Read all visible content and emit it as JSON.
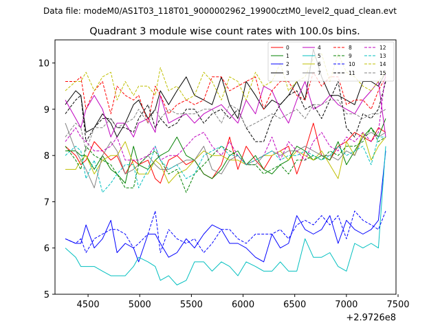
{
  "chart_data": {
    "type": "line",
    "suptitle": "Data file: modeM0/AS1T03_118T01_9000002962_19900cztM0_level2_quad_clean.evt",
    "title": "Quadrant 3 module wise count rates with 100.0s bins.",
    "xlabel": "",
    "ylabel": "",
    "offset_label": "+2.9726e8",
    "xlim": [
      4180,
      7480
    ],
    "ylim": [
      5,
      10.5
    ],
    "x_ticks": [
      4500,
      5000,
      5500,
      6000,
      6500,
      7000,
      7500
    ],
    "x_tick_labels": [
      "4500",
      "5000",
      "5500",
      "6000",
      "6500",
      "7000",
      "7500"
    ],
    "y_ticks": [
      5,
      6,
      7,
      8,
      9,
      10
    ],
    "y_tick_labels": [
      "5",
      "6",
      "7",
      "8",
      "9",
      "10"
    ],
    "legend_location": "top-right",
    "legend_columns": 4,
    "x": [
      4280,
      4380,
      4430,
      4480,
      4560,
      4640,
      4720,
      4780,
      4860,
      4940,
      4990,
      5080,
      5150,
      5200,
      5280,
      5360,
      5450,
      5530,
      5620,
      5700,
      5790,
      5870,
      5950,
      6030,
      6120,
      6200,
      6280,
      6360,
      6440,
      6520,
      6600,
      6680,
      6760,
      6840,
      6920,
      7000,
      7080,
      7160,
      7240,
      7310,
      7380
    ],
    "series": [
      {
        "name": "0",
        "color": "#ff0000",
        "dash": "solid",
        "values": [
          8.2,
          8.0,
          7.8,
          7.9,
          8.3,
          8.1,
          7.9,
          8.0,
          7.6,
          7.9,
          7.8,
          7.9,
          7.5,
          7.4,
          7.9,
          8.0,
          7.8,
          7.9,
          7.6,
          7.5,
          7.8,
          8.4,
          7.7,
          8.2,
          7.9,
          7.7,
          8.0,
          8.1,
          8.2,
          7.6,
          8.1,
          8.7,
          8.0,
          7.9,
          8.2,
          8.3,
          8.5,
          8.4,
          8.3,
          8.6,
          8.5
        ]
      },
      {
        "name": "1",
        "color": "#008000",
        "dash": "solid",
        "values": [
          8.1,
          8.1,
          8.0,
          8.0,
          7.7,
          8.0,
          7.7,
          7.6,
          7.4,
          8.2,
          7.8,
          7.7,
          7.9,
          8.0,
          8.1,
          8.4,
          8.0,
          7.9,
          7.6,
          7.5,
          7.7,
          8.0,
          8.1,
          7.8,
          8.0,
          7.7,
          7.6,
          7.8,
          7.9,
          8.2,
          8.1,
          7.9,
          8.0,
          7.9,
          8.3,
          7.8,
          8.1,
          8.4,
          8.6,
          8.4,
          8.8
        ]
      },
      {
        "name": "2",
        "color": "#0000ff",
        "dash": "solid",
        "values": [
          6.2,
          6.1,
          6.1,
          6.5,
          6.0,
          6.2,
          6.6,
          5.9,
          6.1,
          6.0,
          5.7,
          6.3,
          6.3,
          6.1,
          5.8,
          5.9,
          6.2,
          6.0,
          6.3,
          6.5,
          6.4,
          6.1,
          6.1,
          6.0,
          5.8,
          5.7,
          6.3,
          6.0,
          6.1,
          6.7,
          6.4,
          6.3,
          6.4,
          6.7,
          6.1,
          6.6,
          6.4,
          6.3,
          6.4,
          6.6,
          8.1
        ]
      },
      {
        "name": "3",
        "color": "#000000",
        "dash": "solid",
        "values": [
          9.1,
          9.4,
          9.3,
          8.5,
          8.6,
          8.9,
          8.7,
          8.4,
          8.7,
          9.1,
          9.2,
          8.8,
          9.0,
          9.4,
          9.1,
          9.4,
          9.7,
          9.3,
          9.2,
          9.1,
          9.7,
          9.1,
          8.8,
          9.6,
          9.3,
          9.0,
          9.2,
          9.1,
          9.3,
          9.6,
          9.2,
          10.3,
          9.7,
          9.3,
          9.3,
          9.2,
          9.1,
          9.6,
          9.6,
          9.5,
          9.8
        ]
      },
      {
        "name": "4",
        "color": "#bf00bf",
        "dash": "solid",
        "values": [
          9.2,
          8.8,
          8.6,
          9.0,
          9.3,
          9.0,
          8.4,
          8.7,
          8.7,
          8.4,
          8.7,
          8.8,
          8.5,
          9.3,
          8.7,
          8.8,
          8.9,
          8.7,
          8.9,
          9.0,
          9.1,
          8.9,
          8.7,
          9.2,
          8.9,
          9.5,
          9.4,
          9.0,
          8.7,
          9.2,
          9.6,
          9.0,
          9.1,
          9.3,
          9.1,
          9.0,
          8.9,
          9.2,
          9.4,
          9.6,
          8.4
        ]
      },
      {
        "name": "5",
        "color": "#00bfbf",
        "dash": "solid",
        "values": [
          6.0,
          5.8,
          5.6,
          5.6,
          5.6,
          5.5,
          5.4,
          5.4,
          5.4,
          5.6,
          5.8,
          5.7,
          5.6,
          5.3,
          5.4,
          5.2,
          5.3,
          5.7,
          5.7,
          5.5,
          5.7,
          5.6,
          5.4,
          5.7,
          5.6,
          5.5,
          5.5,
          5.7,
          5.5,
          5.5,
          6.2,
          5.8,
          5.8,
          5.9,
          5.6,
          5.5,
          6.1,
          6.0,
          6.1,
          6.0,
          8.2
        ]
      },
      {
        "name": "6",
        "color": "#bfbf00",
        "dash": "solid",
        "values": [
          7.7,
          7.7,
          7.9,
          8.0,
          7.6,
          7.9,
          8.0,
          8.0,
          8.3,
          7.8,
          7.6,
          7.6,
          7.9,
          7.8,
          7.4,
          7.6,
          7.7,
          7.9,
          8.1,
          8.0,
          8.0,
          7.9,
          7.9,
          7.8,
          7.9,
          8.0,
          8.0,
          8.1,
          7.9,
          8.1,
          8.0,
          7.9,
          8.1,
          7.8,
          7.5,
          8.3,
          8.0,
          8.5,
          7.9,
          8.2,
          8.4
        ]
      },
      {
        "name": "7",
        "color": "#808080",
        "dash": "solid",
        "values": [
          8.7,
          8.1,
          7.9,
          7.7,
          7.3,
          8.0,
          8.3,
          8.1,
          7.6,
          7.7,
          7.8,
          8.0,
          7.8,
          7.7,
          7.7,
          7.8,
          7.9,
          7.9,
          8.2,
          7.7,
          7.6,
          7.9,
          8.0,
          7.8,
          7.8,
          8.0,
          8.1,
          8.0,
          8.1,
          8.1,
          8.2,
          8.1,
          8.0,
          8.0,
          7.9,
          8.1,
          8.0,
          8.4,
          8.5,
          8.4,
          8.5
        ]
      },
      {
        "name": "8",
        "color": "#ff0000",
        "dash": "dashed",
        "values": [
          9.6,
          9.6,
          9.7,
          9.0,
          9.4,
          9.6,
          8.9,
          9.5,
          9.3,
          9.2,
          9.3,
          8.7,
          9.5,
          9.3,
          8.9,
          9.1,
          9.2,
          9.1,
          9.2,
          9.7,
          9.7,
          9.4,
          9.5,
          9.6,
          9.7,
          9.0,
          9.4,
          9.6,
          9.6,
          9.3,
          9.2,
          9.8,
          9.5,
          9.7,
          9.7,
          9.1,
          9.2,
          9.2,
          9.0,
          9.4,
          9.7
        ]
      },
      {
        "name": "9",
        "color": "#008000",
        "dash": "dashed",
        "values": [
          8.2,
          7.9,
          7.7,
          8.2,
          8.0,
          7.9,
          7.8,
          7.6,
          7.3,
          7.3,
          7.8,
          8.0,
          8.1,
          7.9,
          7.6,
          7.7,
          7.2,
          7.6,
          7.8,
          8.0,
          8.2,
          8.1,
          8.0,
          7.8,
          7.8,
          7.6,
          7.7,
          7.8,
          7.6,
          7.9,
          7.9,
          8.0,
          7.9,
          8.1,
          8.0,
          8.2,
          8.2,
          8.3,
          8.6,
          8.3,
          8.4
        ]
      },
      {
        "name": "10",
        "color": "#0000ff",
        "dash": "dashed",
        "values": [
          6.2,
          6.1,
          6.2,
          5.9,
          6.2,
          6.3,
          6.4,
          6.4,
          6.3,
          6.0,
          6.1,
          6.3,
          6.8,
          5.9,
          6.4,
          6.2,
          6.1,
          6.2,
          5.9,
          6.1,
          6.4,
          6.4,
          6.2,
          6.1,
          6.3,
          6.3,
          6.3,
          6.4,
          6.2,
          6.5,
          6.6,
          6.5,
          6.7,
          6.5,
          6.7,
          6.2,
          6.8,
          6.6,
          6.5,
          6.4,
          6.8
        ]
      },
      {
        "name": "11",
        "color": "#000000",
        "dash": "dashed",
        "values": [
          8.9,
          9.2,
          9.3,
          8.3,
          8.6,
          8.8,
          8.8,
          8.6,
          8.6,
          8.5,
          8.8,
          9.1,
          8.6,
          8.8,
          8.6,
          8.7,
          9.0,
          9.0,
          8.7,
          8.9,
          9.0,
          8.8,
          9.0,
          8.6,
          8.3,
          8.3,
          8.8,
          9.1,
          9.3,
          9.4,
          9.0,
          9.1,
          8.8,
          9.2,
          9.6,
          8.6,
          8.4,
          8.9,
          8.8,
          9.0,
          9.6
        ]
      },
      {
        "name": "12",
        "color": "#bf00bf",
        "dash": "dashed",
        "values": [
          8.3,
          8.6,
          8.4,
          8.3,
          8.1,
          8.1,
          8.2,
          8.4,
          7.9,
          7.9,
          7.9,
          8.0,
          8.2,
          7.9,
          8.0,
          8.0,
          8.2,
          8.4,
          8.5,
          8.2,
          8.0,
          8.3,
          8.0,
          7.8,
          7.9,
          8.0,
          8.4,
          7.9,
          8.3,
          8.1,
          7.9,
          8.3,
          8.5,
          8.2,
          8.1,
          8.4,
          8.3,
          8.5,
          8.3,
          8.5,
          9.8
        ]
      },
      {
        "name": "13",
        "color": "#00bfbf",
        "dash": "dashed",
        "values": [
          8.0,
          8.2,
          8.1,
          7.5,
          7.9,
          7.2,
          7.4,
          7.6,
          7.8,
          7.8,
          7.3,
          7.7,
          8.2,
          7.9,
          7.7,
          7.8,
          7.5,
          7.6,
          8.0,
          8.1,
          8.2,
          8.0,
          8.0,
          7.8,
          7.9,
          8.0,
          8.1,
          7.9,
          8.0,
          8.0,
          8.1,
          8.0,
          7.9,
          8.0,
          8.2,
          8.0,
          8.1,
          8.2,
          7.8,
          8.4,
          8.4
        ]
      },
      {
        "name": "14",
        "color": "#bfbf00",
        "dash": "dashed",
        "values": [
          9.4,
          9.6,
          9.6,
          9.8,
          9.4,
          9.7,
          9.8,
          9.2,
          9.6,
          9.3,
          9.5,
          9.5,
          9.3,
          9.9,
          9.4,
          9.5,
          9.2,
          9.3,
          9.8,
          9.6,
          9.2,
          9.7,
          9.6,
          9.2,
          9.8,
          9.5,
          9.6,
          10.0,
          9.4,
          9.6,
          9.7,
          10.1,
          10.2,
          9.6,
          10.2,
          9.8,
          9.7,
          9.5,
          9.4,
          9.6,
          9.8
        ]
      },
      {
        "name": "15",
        "color": "#808080",
        "dash": "dashed",
        "values": [
          8.4,
          8.7,
          8.6,
          8.1,
          8.6,
          8.6,
          8.8,
          8.6,
          8.7,
          8.8,
          9.0,
          8.7,
          9.0,
          8.8,
          9.0,
          8.9,
          8.9,
          8.9,
          9.0,
          9.0,
          8.7,
          9.1,
          9.0,
          8.6,
          8.7,
          8.8,
          8.9,
          8.8,
          8.9,
          9.0,
          8.8,
          9.1,
          9.1,
          9.2,
          9.2,
          8.9,
          8.9,
          8.8,
          8.9,
          8.9,
          9.0
        ]
      }
    ]
  }
}
